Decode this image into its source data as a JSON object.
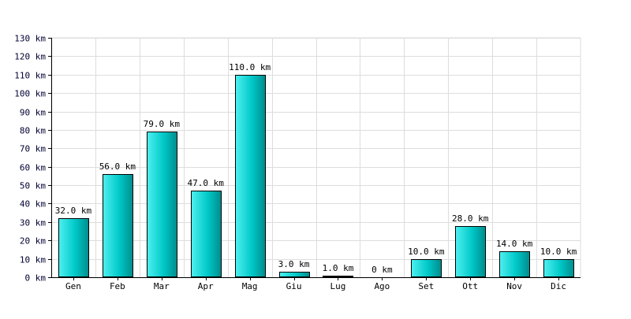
{
  "chart_data": {
    "type": "bar",
    "categories": [
      "Gen",
      "Feb",
      "Mar",
      "Apr",
      "Mag",
      "Giu",
      "Lug",
      "Ago",
      "Set",
      "Ott",
      "Nov",
      "Dic"
    ],
    "values": [
      32,
      56,
      79,
      47,
      110,
      3,
      1,
      0,
      10,
      28,
      14,
      10
    ],
    "value_labels": [
      "32.0 km",
      "56.0 km",
      "79.0 km",
      "47.0 km",
      "110.0 km",
      "3.0 km",
      "1.0 km",
      "0 km",
      "10.0 km",
      "28.0 km",
      "14.0 km",
      "10.0 km"
    ],
    "y_ticks": [
      "0 km",
      "10 km",
      "20 km",
      "30 km",
      "40 km",
      "50 km",
      "60 km",
      "70 km",
      "80 km",
      "90 km",
      "100 km",
      "110 km",
      "120 km",
      "130 km"
    ],
    "ylim": [
      0,
      130
    ],
    "ystep": 10,
    "grid": true,
    "title": "",
    "xlabel": "",
    "ylabel": "",
    "colors": {
      "bar_light": "#4ff0f0",
      "bar_mid": "#00c8c8",
      "bar_dark": "#008c8c",
      "bar_outline": "#000000",
      "grid": "#dddddd",
      "axis": "#000000"
    }
  }
}
